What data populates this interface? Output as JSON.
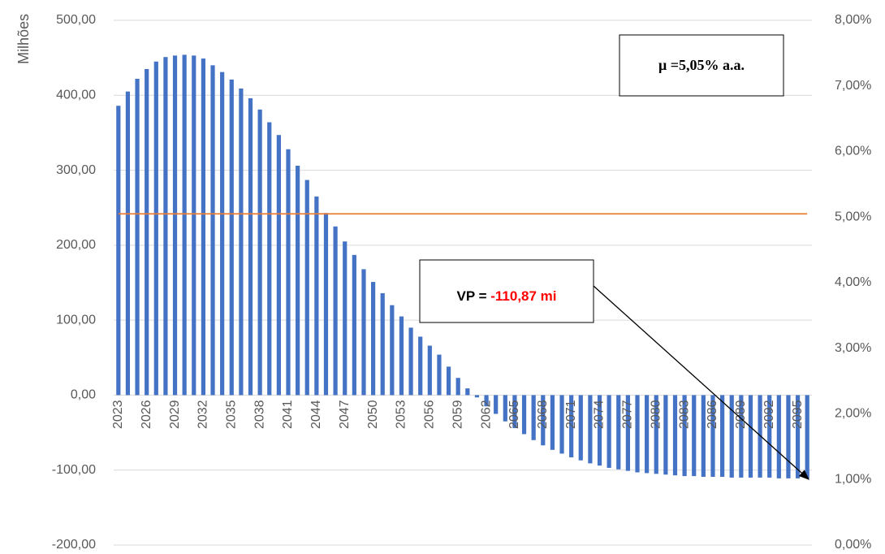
{
  "chart_data": {
    "type": "bar",
    "y_label": "Milhões",
    "categories": [
      "2023",
      null,
      null,
      "2026",
      null,
      null,
      "2029",
      null,
      null,
      "2032",
      null,
      null,
      "2035",
      null,
      null,
      "2038",
      null,
      null,
      "2041",
      null,
      null,
      "2044",
      null,
      null,
      "2047",
      null,
      null,
      "2050",
      null,
      null,
      "2053",
      null,
      null,
      "2056",
      null,
      null,
      "2059",
      null,
      null,
      "2062",
      null,
      null,
      "2065",
      null,
      null,
      "2068",
      null,
      null,
      "2071",
      null,
      null,
      "2074",
      null,
      null,
      "2077",
      null,
      null,
      "2080",
      null,
      null,
      "2083",
      null,
      null,
      "2086",
      null,
      null,
      "2089",
      null,
      null,
      "2092",
      null,
      null,
      "2095",
      null
    ],
    "series": [
      {
        "color": "#4472c4",
        "values": [
          386,
          405,
          422,
          435,
          445,
          451,
          453,
          454,
          453,
          449,
          440,
          431,
          421,
          409,
          396,
          381,
          364,
          347,
          328,
          306,
          287,
          265,
          243,
          225,
          205,
          187,
          168,
          151,
          136,
          120,
          105,
          90,
          78,
          66,
          54,
          38,
          23,
          9,
          -3,
          -15,
          -25,
          -35,
          -44,
          -52,
          -60,
          -67,
          -73,
          -78,
          -83,
          -87,
          -91,
          -94,
          -97,
          -99,
          -101,
          -103,
          -104,
          -105,
          -106,
          -107,
          -108,
          -108,
          -109,
          -109,
          -109,
          -110,
          -110,
          -110,
          -110,
          -110,
          -111,
          -111,
          -111,
          -111
        ]
      },
      {
        "type": "line",
        "axis": "y2",
        "color": "#ed7d31",
        "values": [
          5.05,
          5.05,
          5.05,
          5.05,
          5.05,
          5.05,
          5.05,
          5.05,
          5.05,
          5.05,
          5.05,
          5.05,
          5.05,
          5.05,
          5.05,
          5.05,
          5.05,
          5.05,
          5.05,
          5.05,
          5.05,
          5.05,
          5.05,
          5.05,
          5.05,
          5.05,
          5.05,
          5.05,
          5.05,
          5.05,
          5.05,
          5.05,
          5.05,
          5.05,
          5.05,
          5.05,
          5.05,
          5.05,
          5.05,
          5.05,
          5.05,
          5.05,
          5.05,
          5.05,
          5.05,
          5.05,
          5.05,
          5.05,
          5.05,
          5.05,
          5.05,
          5.05,
          5.05,
          5.05,
          5.05,
          5.05,
          5.05,
          5.05,
          5.05,
          5.05,
          5.05,
          5.05,
          5.05,
          5.05,
          5.05,
          5.05,
          5.05,
          5.05,
          5.05,
          5.05,
          5.05,
          5.05,
          5.05,
          5.05
        ]
      }
    ],
    "ylim": [
      -200,
      500
    ],
    "yticks": [
      {
        "value": -200,
        "label": "-200,00"
      },
      {
        "value": -100,
        "label": "-100,00"
      },
      {
        "value": 0,
        "label": "0,00"
      },
      {
        "value": 100,
        "label": "100,00"
      },
      {
        "value": 200,
        "label": "200,00"
      },
      {
        "value": 300,
        "label": "300,00"
      },
      {
        "value": 400,
        "label": "400,00"
      },
      {
        "value": 500,
        "label": "500,00"
      }
    ],
    "y2lim": [
      0,
      8
    ],
    "y2ticks": [
      {
        "value": 0,
        "label": "0,00%"
      },
      {
        "value": 1,
        "label": "1,00%"
      },
      {
        "value": 2,
        "label": "2,00%"
      },
      {
        "value": 3,
        "label": "3,00%"
      },
      {
        "value": 4,
        "label": "4,00%"
      },
      {
        "value": 5,
        "label": "5,00%"
      },
      {
        "value": 6,
        "label": "6,00%"
      },
      {
        "value": 7,
        "label": "7,00%"
      },
      {
        "value": 8,
        "label": "8,00%"
      }
    ],
    "grid": true,
    "annotations": [
      {
        "text": "μ =5,05% a.a."
      },
      {
        "text": "VP = ",
        "value_text": "-110,87 mi",
        "value_color": "#ff0000"
      }
    ]
  }
}
